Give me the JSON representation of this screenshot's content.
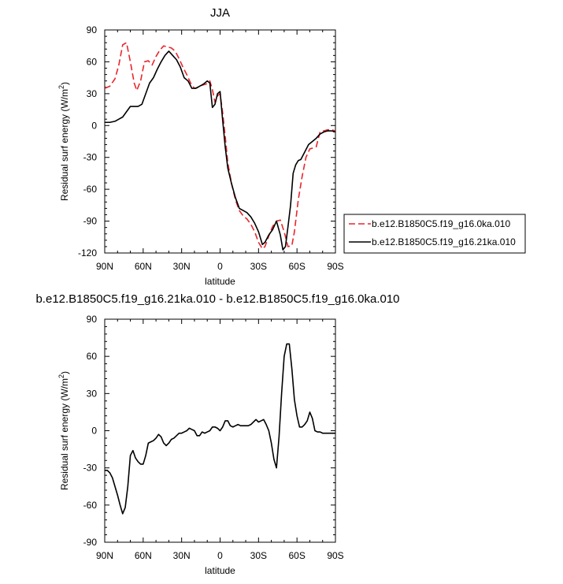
{
  "chart_data": [
    {
      "type": "line",
      "title": "JJA",
      "xlabel": "latitude",
      "ylabel": "Residual surf energy (W/m",
      "ylabel_sup": "2",
      "ylabel_close": ")",
      "xlim": [
        90,
        -90
      ],
      "ylim": [
        -120,
        90
      ],
      "xticks": [
        90,
        60,
        30,
        0,
        -30,
        -60,
        -90
      ],
      "xtick_labels": [
        "90N",
        "60N",
        "30N",
        "0",
        "30S",
        "60S",
        "90S"
      ],
      "yticks": [
        -120,
        -90,
        -60,
        -30,
        0,
        30,
        60,
        90
      ],
      "ytick_labels": [
        "-120",
        "-90",
        "-60",
        "-30",
        "0",
        "30",
        "60",
        "90"
      ],
      "legend_position": "right",
      "series": [
        {
          "name": "b.e12.B1850C5.f19_g16.0ka.010",
          "color": "#e8262c",
          "dash": "dashed",
          "x": [
            90,
            86,
            82,
            79,
            76,
            73,
            70,
            67,
            65,
            62,
            59,
            56,
            53,
            50,
            47,
            44,
            41,
            38,
            35,
            32,
            29,
            26,
            23,
            20,
            17,
            14,
            11,
            8,
            6,
            4,
            2,
            0,
            -2,
            -4,
            -6,
            -9,
            -12,
            -15,
            -18,
            -21,
            -24,
            -27,
            -30,
            -33,
            -35,
            -38,
            -41,
            -44,
            -47,
            -50,
            -53,
            -56,
            -58,
            -61,
            -64,
            -67,
            -70,
            -73,
            -75,
            -78,
            -81,
            -84,
            -87,
            -90
          ],
          "y": [
            35,
            37,
            44,
            57,
            76,
            78,
            60,
            40,
            33,
            42,
            60,
            61,
            57,
            65,
            71,
            75,
            74,
            73,
            70,
            63,
            55,
            48,
            40,
            35,
            36,
            38,
            39,
            42,
            34,
            22,
            28,
            30,
            12,
            -10,
            -35,
            -55,
            -70,
            -80,
            -85,
            -88,
            -93,
            -100,
            -110,
            -116,
            -114,
            -104,
            -95,
            -90,
            -89,
            -100,
            -114,
            -113,
            -100,
            -70,
            -48,
            -30,
            -22,
            -21,
            -20,
            -6,
            -5,
            -4,
            -4,
            -5
          ]
        },
        {
          "name": "b.e12.B1850C5.f19_g16.21ka.010",
          "color": "#000000",
          "dash": "solid",
          "x": [
            90,
            86,
            82,
            79,
            76,
            73,
            70,
            67,
            64,
            61,
            58,
            55,
            52,
            49,
            46,
            43,
            40,
            37,
            34,
            31,
            28,
            25,
            22,
            19,
            16,
            13,
            10,
            8,
            6,
            4,
            2,
            0,
            -2,
            -4,
            -6,
            -9,
            -12,
            -15,
            -18,
            -21,
            -24,
            -27,
            -30,
            -33,
            -35,
            -38,
            -41,
            -44,
            -47,
            -49,
            -51,
            -53,
            -55,
            -57,
            -59,
            -61,
            -63,
            -66,
            -69,
            -72,
            -75,
            -78,
            -81,
            -84,
            -87,
            -90
          ],
          "y": [
            3,
            3,
            4,
            6,
            8,
            13,
            18,
            18,
            18,
            20,
            30,
            40,
            45,
            53,
            60,
            66,
            70,
            66,
            62,
            55,
            45,
            42,
            35,
            35,
            37,
            39,
            42,
            40,
            17,
            20,
            30,
            32,
            5,
            -20,
            -40,
            -55,
            -68,
            -78,
            -80,
            -82,
            -86,
            -92,
            -100,
            -112,
            -110,
            -103,
            -98,
            -90,
            -103,
            -117,
            -114,
            -95,
            -75,
            -45,
            -37,
            -33,
            -32,
            -25,
            -18,
            -15,
            -12,
            -8,
            -6,
            -5,
            -5,
            -6
          ]
        }
      ]
    },
    {
      "type": "line",
      "title": "b.e12.B1850C5.f19_g16.21ka.010 - b.e12.B1850C5.f19_g16.0ka.010",
      "xlabel": "latitude",
      "ylabel": "Residual surf energy (W/m",
      "ylabel_sup": "2",
      "ylabel_close": ")",
      "xlim": [
        90,
        -90
      ],
      "ylim": [
        -90,
        90
      ],
      "xticks": [
        90,
        60,
        30,
        0,
        -30,
        -60,
        -90
      ],
      "xtick_labels": [
        "90N",
        "60N",
        "30N",
        "0",
        "30S",
        "60S",
        "90S"
      ],
      "yticks": [
        -90,
        -60,
        -30,
        0,
        30,
        60,
        90
      ],
      "ytick_labels": [
        "-90",
        "-60",
        "-30",
        "0",
        "30",
        "60",
        "90"
      ],
      "series": [
        {
          "color": "#000000",
          "dash": "solid",
          "x": [
            90,
            88,
            86,
            84,
            82,
            80,
            78,
            76,
            74,
            72,
            70,
            68,
            66,
            64,
            62,
            60,
            58,
            56,
            54,
            52,
            50,
            48,
            46,
            44,
            42,
            40,
            38,
            36,
            34,
            32,
            30,
            28,
            26,
            24,
            22,
            20,
            18,
            16,
            14,
            12,
            10,
            8,
            6,
            4,
            2,
            0,
            -2,
            -4,
            -6,
            -8,
            -10,
            -12,
            -14,
            -16,
            -18,
            -20,
            -22,
            -24,
            -26,
            -28,
            -30,
            -32,
            -34,
            -36,
            -38,
            -40,
            -42,
            -44,
            -46,
            -48,
            -50,
            -52,
            -54,
            -56,
            -58,
            -60,
            -62,
            -64,
            -66,
            -68,
            -70,
            -72,
            -74,
            -76,
            -78,
            -80,
            -82,
            -84,
            -86,
            -88,
            -90
          ],
          "y": [
            -32,
            -32,
            -34,
            -38,
            -45,
            -52,
            -60,
            -67,
            -62,
            -45,
            -20,
            -16,
            -22,
            -25,
            -27,
            -27,
            -20,
            -10,
            -9,
            -8,
            -6,
            -3,
            -5,
            -10,
            -12,
            -10,
            -7,
            -6,
            -4,
            -2,
            -2,
            -1,
            0,
            2,
            1,
            0,
            -4,
            -4,
            -1,
            -2,
            -1,
            0,
            3,
            3,
            2,
            0,
            3,
            8,
            8,
            4,
            3,
            4,
            5,
            4,
            4,
            4,
            4,
            5,
            7,
            9,
            7,
            8,
            9,
            5,
            0,
            -10,
            -23,
            -30,
            -5,
            30,
            60,
            70,
            70,
            50,
            25,
            12,
            3,
            3,
            5,
            8,
            15,
            10,
            0,
            -1,
            -1,
            -2,
            -2,
            -2,
            -2,
            -2,
            -2
          ]
        }
      ]
    }
  ]
}
